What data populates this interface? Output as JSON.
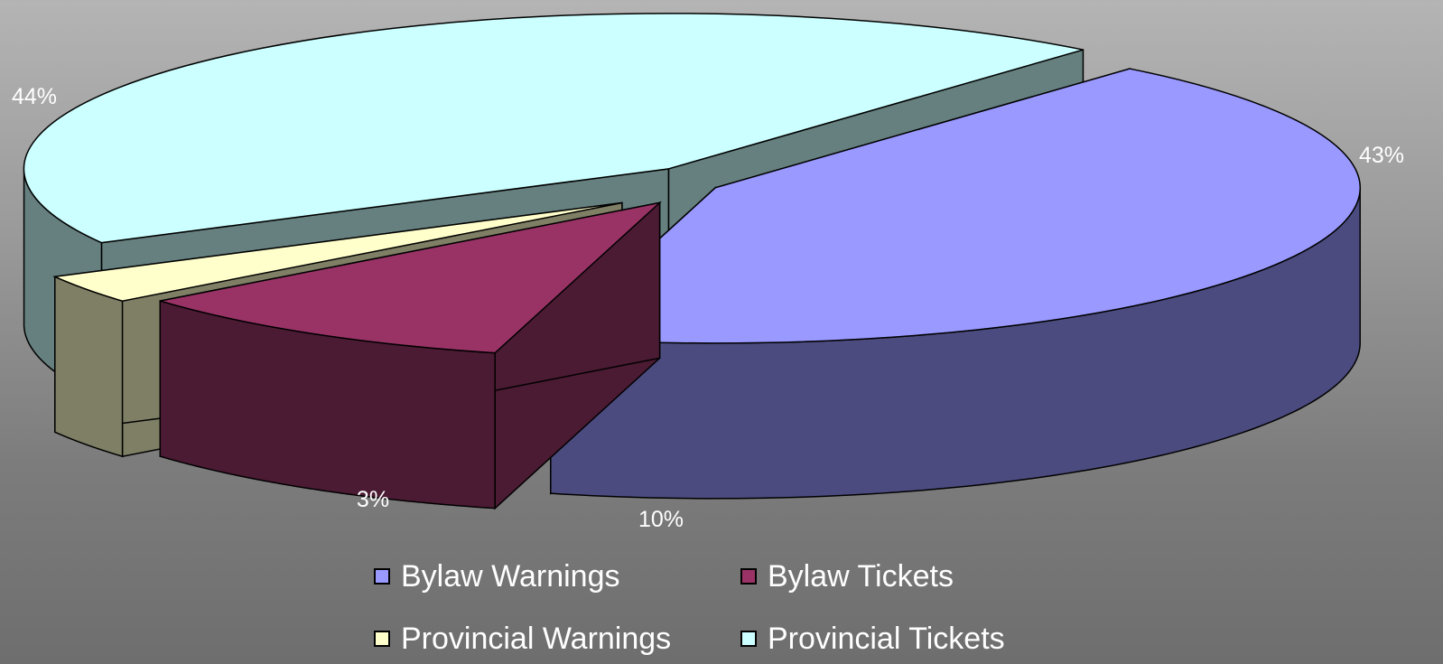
{
  "chart_data": {
    "type": "pie",
    "style": "3d-exploded",
    "title": "",
    "categories": [
      "Bylaw Warnings",
      "Bylaw Tickets",
      "Provincial Warnings",
      "Provincial Tickets"
    ],
    "values": [
      43,
      10,
      3,
      44
    ],
    "labels": [
      "43%",
      "10%",
      "3%",
      "44%"
    ],
    "colors": {
      "Bylaw Warnings": {
        "top": "#9999ff",
        "side": "#4b4b7f"
      },
      "Bylaw Tickets": {
        "top": "#993366",
        "side": "#4b1a33"
      },
      "Provincial Warnings": {
        "top": "#ffffcc",
        "side": "#7f7f66"
      },
      "Provincial Tickets": {
        "top": "#ccffff",
        "side": "#667f7f"
      }
    },
    "label_color": "#ffffff",
    "legend": {
      "placement": "bottom",
      "columns": 2,
      "items": [
        "Bylaw Warnings",
        "Bylaw Tickets",
        "Provincial Warnings",
        "Provincial Tickets"
      ]
    },
    "grid": false
  }
}
